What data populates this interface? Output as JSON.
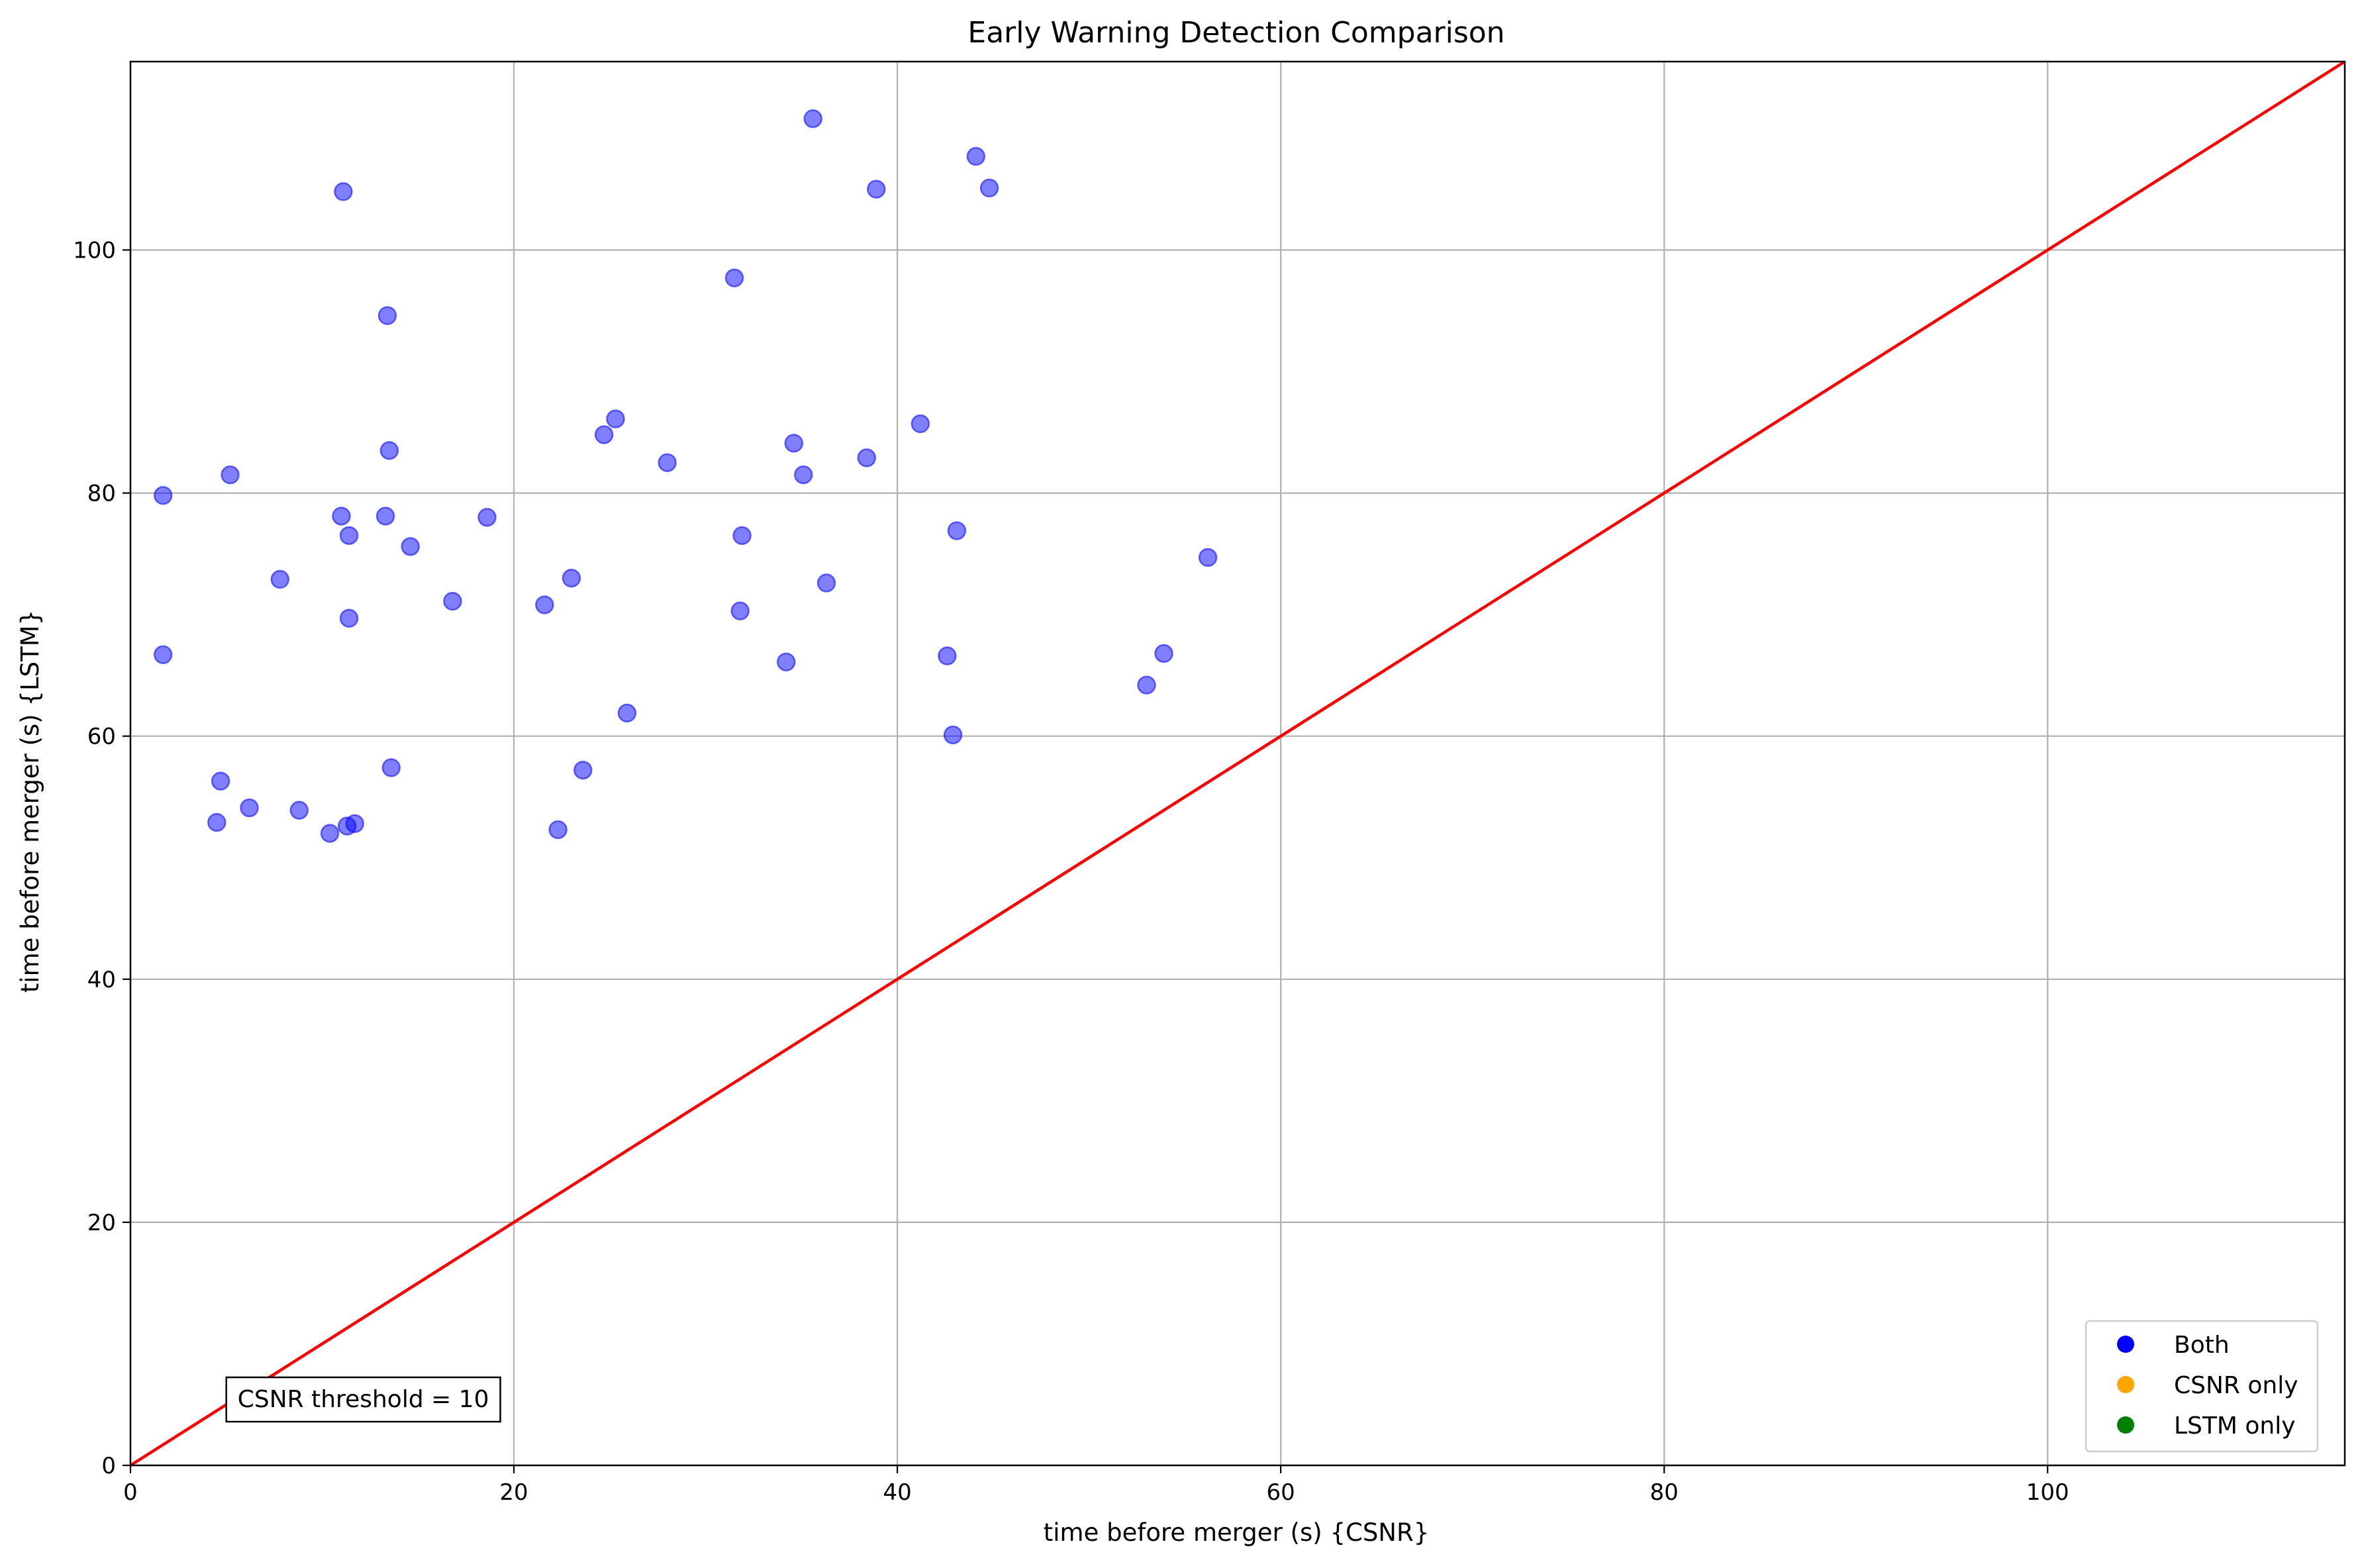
{
  "chart_data": {
    "type": "scatter",
    "title": "Early Warning Detection Comparison",
    "xlabel": "time before merger (s) {CSNR}",
    "ylabel": "time before merger (s) {LSTM}",
    "xlim": [
      0,
      115.5
    ],
    "ylim": [
      0,
      115.5
    ],
    "xticks": [
      0,
      20,
      40,
      60,
      80,
      100
    ],
    "yticks": [
      0,
      20,
      40,
      60,
      80,
      100
    ],
    "grid": true,
    "reference_line": {
      "x": [
        0,
        115.5
      ],
      "y": [
        0,
        115.5
      ],
      "color": "#ff0000"
    },
    "series": [
      {
        "name": "Both",
        "color": "#0000ff",
        "points": [
          [
            1.7,
            79.8
          ],
          [
            1.7,
            66.7
          ],
          [
            4.5,
            52.9
          ],
          [
            4.7,
            56.3
          ],
          [
            5.2,
            81.5
          ],
          [
            6.2,
            54.1
          ],
          [
            7.8,
            72.9
          ],
          [
            8.8,
            53.9
          ],
          [
            10.4,
            52.0
          ],
          [
            11.0,
            78.1
          ],
          [
            11.1,
            104.8
          ],
          [
            11.3,
            52.6
          ],
          [
            11.4,
            76.5
          ],
          [
            11.4,
            69.7
          ],
          [
            11.7,
            52.8
          ],
          [
            13.3,
            78.1
          ],
          [
            13.4,
            94.6
          ],
          [
            13.5,
            83.5
          ],
          [
            13.6,
            57.4
          ],
          [
            14.6,
            75.6
          ],
          [
            16.8,
            71.1
          ],
          [
            18.6,
            78.0
          ],
          [
            21.6,
            70.8
          ],
          [
            22.3,
            52.3
          ],
          [
            23.0,
            73.0
          ],
          [
            23.6,
            57.2
          ],
          [
            24.7,
            84.8
          ],
          [
            25.3,
            86.1
          ],
          [
            25.9,
            61.9
          ],
          [
            28.0,
            82.5
          ],
          [
            31.5,
            97.7
          ],
          [
            31.8,
            70.3
          ],
          [
            31.9,
            76.5
          ],
          [
            34.2,
            66.1
          ],
          [
            34.6,
            84.1
          ],
          [
            35.1,
            81.5
          ],
          [
            35.6,
            110.8
          ],
          [
            36.3,
            72.6
          ],
          [
            38.4,
            82.9
          ],
          [
            38.9,
            105.0
          ],
          [
            41.2,
            85.7
          ],
          [
            42.6,
            66.6
          ],
          [
            42.9,
            60.1
          ],
          [
            43.1,
            76.9
          ],
          [
            44.1,
            107.7
          ],
          [
            44.8,
            105.1
          ],
          [
            53.0,
            64.2
          ],
          [
            53.9,
            66.8
          ],
          [
            56.2,
            74.7
          ]
        ]
      },
      {
        "name": "CSNR only",
        "color": "#ffa500",
        "points": []
      },
      {
        "name": "LSTM only",
        "color": "#008000",
        "points": []
      }
    ],
    "legend": {
      "position": "bottom-right",
      "entries": [
        {
          "label": "Both",
          "color": "#0000ff"
        },
        {
          "label": "CSNR only",
          "color": "#ffa500"
        },
        {
          "label": "LSTM only",
          "color": "#008000"
        }
      ]
    },
    "annotation": {
      "text": "CSNR threshold = 10",
      "x": 5,
      "y": 5.5
    }
  }
}
